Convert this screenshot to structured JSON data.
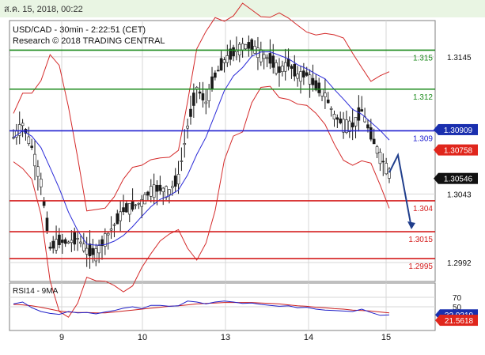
{
  "header": {
    "timestamp": "ส.ค. 15, 2018, 00:22"
  },
  "colors": {
    "background": "#ffffff",
    "topbar": "#e9f5e3",
    "topbar_border": "#c8dcc0",
    "frame": "#7f7f7f",
    "grid": "#d7d7d7",
    "candle": "#1a1a1a",
    "bollinger": "#d42a2a",
    "moving_average": "#2a2ad8",
    "resistance_green": "#1b8a1b",
    "pivot_blue": "#2020d0",
    "support_red": "#d41c1c",
    "forecast_arrow": "#203e8c",
    "rsi_line": "#1f1fc8",
    "rsi_ma_line": "#cc2020",
    "price_badge_blue": "#1a2fae",
    "price_badge_red": "#e0261c",
    "price_badge_black": "#111111",
    "rsi_badge_blue": "#1a2fae",
    "rsi_badge_red": "#e0261c"
  },
  "chart_data": {
    "type": "line",
    "title": "USD/CAD - 30min - 2:22:51 (CET)",
    "subtitle": "Research © 2018 TRADING CENTRAL",
    "x_tick_labels": [
      "9",
      "10",
      "13",
      "14",
      "15"
    ],
    "price_axis": {
      "range": [
        1.2978,
        1.3172
      ],
      "tick_labels": [
        "1.3145",
        "1.3043",
        "1.2992"
      ]
    },
    "series": [
      {
        "values": [
          1.3085,
          1.3095,
          1.3078,
          1.3052,
          1.3003,
          1.3008,
          1.3007,
          1.301,
          1.3001,
          1.2999,
          1.301,
          1.302,
          1.3031,
          1.3034,
          1.3037,
          1.3046,
          1.3047,
          1.3045,
          1.3055,
          1.3093,
          1.3122,
          1.3111,
          1.3131,
          1.3142,
          1.3148,
          1.3153,
          1.3153,
          1.3147,
          1.3143,
          1.3135,
          1.314,
          1.3131,
          1.3132,
          1.3123,
          1.3117,
          1.3101,
          1.3095,
          1.3094,
          1.3105,
          1.3087,
          1.3071,
          1.3059
        ]
      }
    ],
    "levels": [
      {
        "label": "1.315",
        "value": 1.315,
        "kind": "resistance"
      },
      {
        "label": "1.312",
        "value": 1.3121,
        "kind": "resistance"
      },
      {
        "label": "1.309",
        "value": 1.309,
        "kind": "pivot"
      },
      {
        "label": "1.304",
        "value": 1.3038,
        "kind": "support"
      },
      {
        "label": "1.3015",
        "value": 1.3015,
        "kind": "support"
      },
      {
        "label": "1.2995",
        "value": 1.2995,
        "kind": "support"
      }
    ],
    "price_badges": [
      {
        "text": "1.30909",
        "value": 1.30909,
        "color": "blue"
      },
      {
        "text": "1.30758",
        "value": 1.30758,
        "color": "red"
      },
      {
        "text": "1.30546",
        "value": 1.30546,
        "color": "black"
      }
    ],
    "forecast": {
      "from": 1.3072,
      "to": 1.3018
    },
    "rsi": {
      "label": "RSI14 - 9MA",
      "range": [
        0,
        100
      ],
      "tick_labels": [
        "70",
        "50"
      ],
      "rsi_values": [
        56,
        60,
        48,
        40,
        36,
        34,
        40,
        37,
        38,
        35,
        39,
        42,
        47,
        50,
        46,
        53,
        53,
        51,
        52,
        62,
        60,
        56,
        60,
        62,
        60,
        57,
        58,
        55,
        53,
        51,
        52,
        48,
        49,
        45,
        43,
        42,
        41,
        40,
        45,
        38,
        32,
        33
      ],
      "ma_values": [
        55,
        54,
        52,
        49,
        45,
        41,
        39,
        38,
        38,
        37,
        37,
        39,
        41,
        43,
        45,
        47,
        49,
        51,
        52,
        54,
        56,
        57,
        58,
        59,
        59,
        59,
        59,
        58,
        57,
        56,
        54,
        52,
        51,
        49,
        48,
        46,
        45,
        43,
        42,
        41,
        39,
        37
      ],
      "badges": [
        {
          "text": "32.9319",
          "value": 32.9319,
          "color": "blue"
        },
        {
          "text": "21.5618",
          "value": 21.5618,
          "color": "red"
        }
      ]
    }
  }
}
